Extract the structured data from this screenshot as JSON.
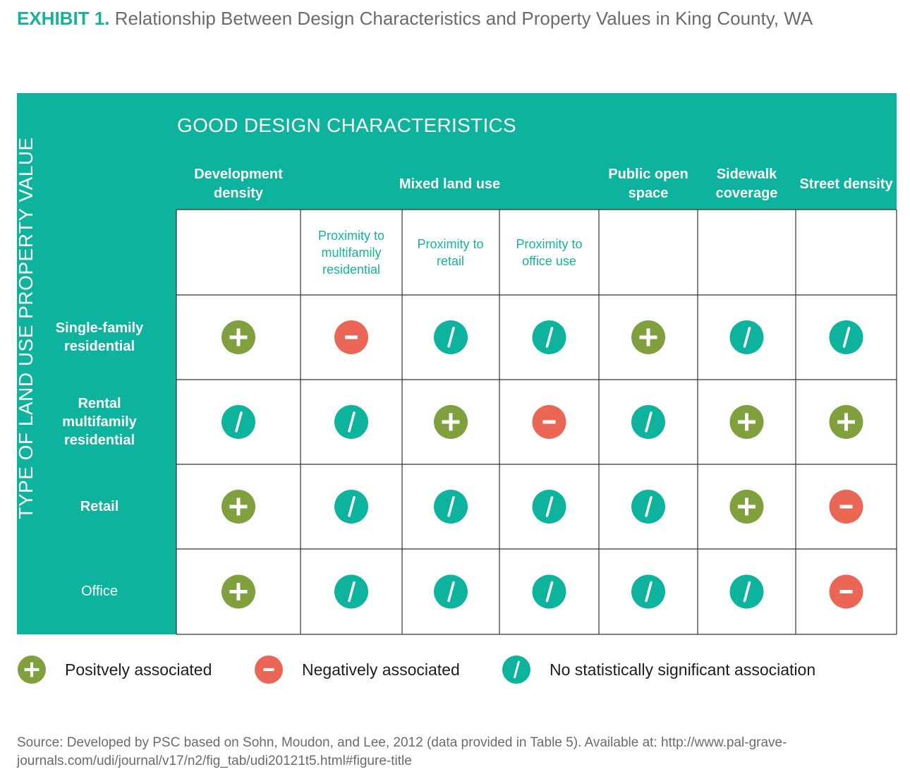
{
  "title": {
    "lead": "EXHIBIT 1.",
    "text": "Relationship Between Design Characteristics and Property Values in King County, WA"
  },
  "colors": {
    "panel": "#0db39c",
    "positive": "#7fa03c",
    "negative": "#ea6755",
    "neutral": "#0db39c",
    "grid": "#333333"
  },
  "icons": {
    "positive": "plus-circle-icon",
    "negative": "minus-circle-icon",
    "neutral": "slash-circle-icon"
  },
  "chart_data": {
    "type": "table",
    "section_title": "GOOD DESIGN CHARACTERISTICS",
    "row_axis_label": "TYPE OF LAND USE PROPERTY VALUE",
    "column_groups": [
      {
        "label": "Development density",
        "subcolumns": [
          ""
        ]
      },
      {
        "label": "Mixed land use",
        "subcolumns": [
          "Proximity to multifamily residential",
          "Proximity to retail",
          "Proximity to office use"
        ]
      },
      {
        "label": "Public open space",
        "subcolumns": [
          ""
        ]
      },
      {
        "label": "Sidewalk coverage",
        "subcolumns": [
          ""
        ]
      },
      {
        "label": "Street density",
        "subcolumns": [
          ""
        ]
      }
    ],
    "rows": [
      {
        "label": "Single-family residential",
        "values": [
          "positive",
          "negative",
          "neutral",
          "neutral",
          "positive",
          "neutral",
          "neutral"
        ]
      },
      {
        "label": "Rental multifamily residential",
        "values": [
          "neutral",
          "neutral",
          "positive",
          "negative",
          "neutral",
          "positive",
          "positive"
        ]
      },
      {
        "label": "Retail",
        "values": [
          "positive",
          "neutral",
          "neutral",
          "neutral",
          "neutral",
          "positive",
          "negative"
        ]
      },
      {
        "label": "Office",
        "values": [
          "positive",
          "neutral",
          "neutral",
          "neutral",
          "neutral",
          "neutral",
          "negative"
        ]
      }
    ]
  },
  "legend": {
    "positive": "Positvely associated",
    "negative": "Negatively associated",
    "neutral": "No statistically significant association"
  },
  "source": "Source: Developed by PSC based on Sohn, Moudon, and Lee, 2012 (data provided in Table 5).  Available at: http://www.pal-grave-journals.com/udi/journal/v17/n2/fig_tab/udi20121t5.html#figure-title"
}
